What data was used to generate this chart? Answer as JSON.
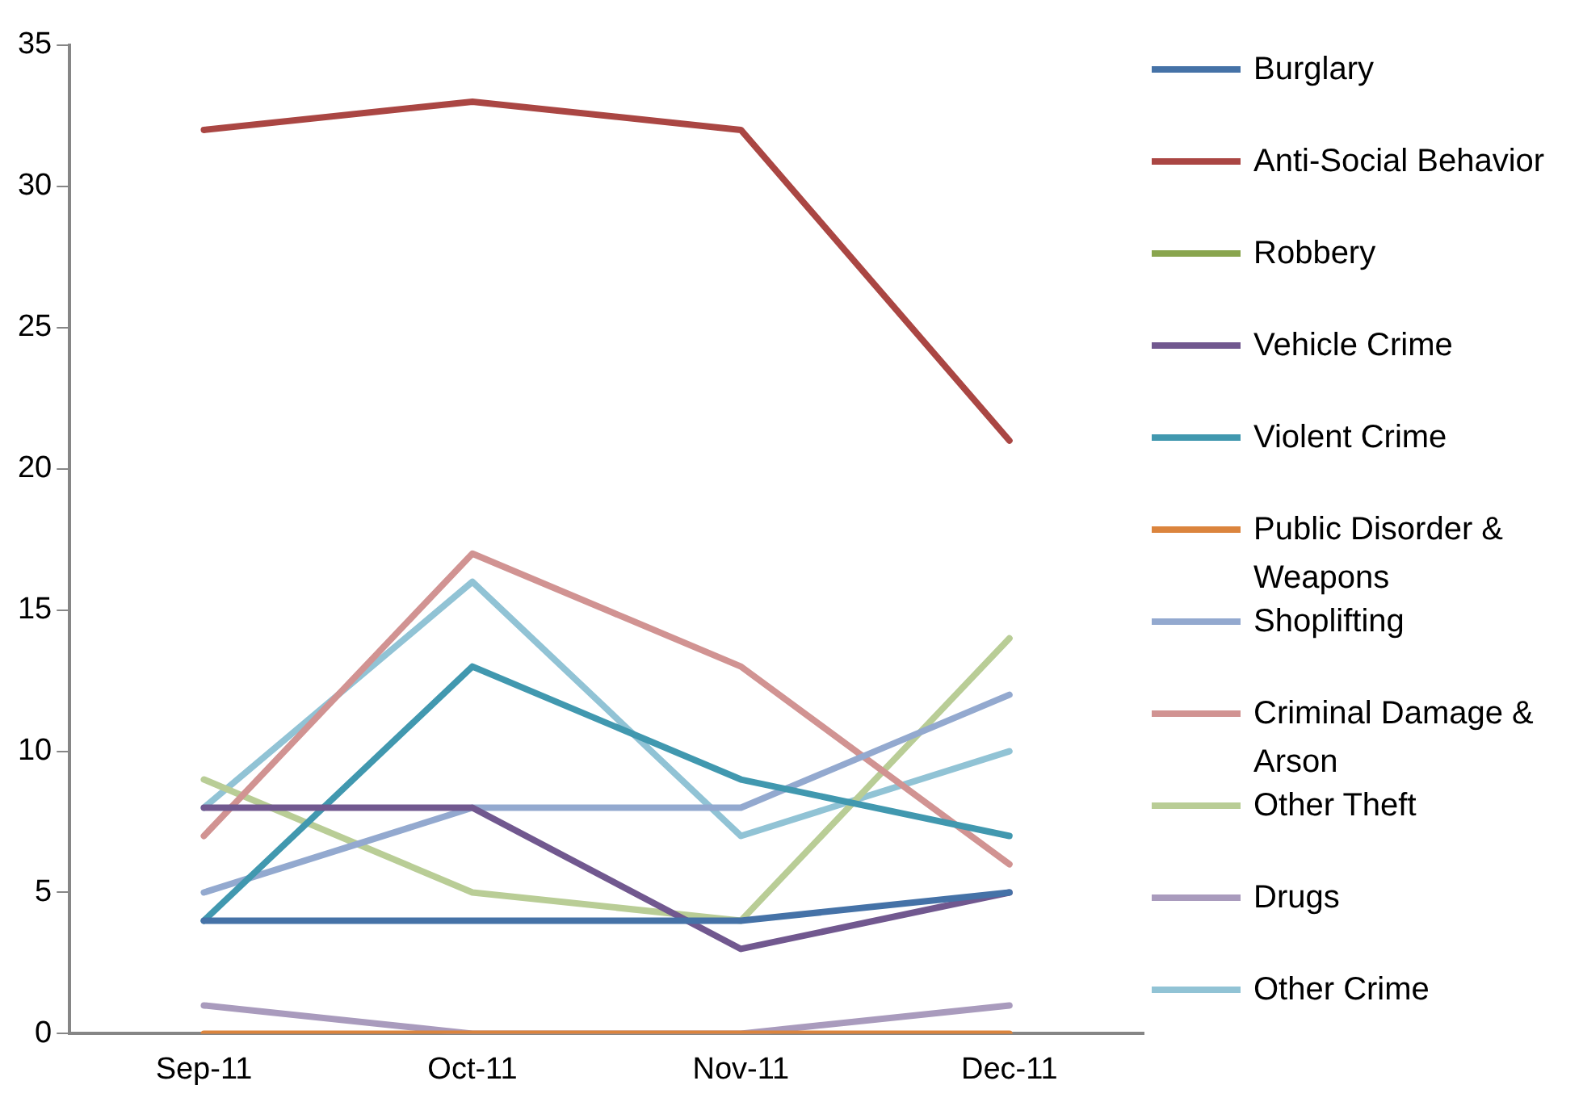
{
  "chart_data": {
    "type": "line",
    "categories": [
      "Sep-11",
      "Oct-11",
      "Nov-11",
      "Dec-11"
    ],
    "ylim": [
      0,
      35
    ],
    "yticks": [
      0,
      5,
      10,
      15,
      20,
      25,
      30,
      35
    ],
    "grid": false,
    "legend": "right",
    "marker": "none",
    "series": [
      {
        "name": "Burglary",
        "color": "#4572a7",
        "values": [
          4,
          4,
          4,
          5
        ]
      },
      {
        "name": "Anti-Social Behavior",
        "color": "#aa4643",
        "values": [
          32,
          33,
          32,
          21
        ]
      },
      {
        "name": "Robbery",
        "color": "#89a54e",
        "values": [
          null,
          null,
          null,
          null
        ]
      },
      {
        "name": "Vehicle Crime",
        "color": "#71588f",
        "values": [
          8,
          8,
          3,
          5
        ]
      },
      {
        "name": "Violent Crime",
        "color": "#4198af",
        "values": [
          4,
          13,
          9,
          7
        ]
      },
      {
        "name": "Public Disorder & Weapons",
        "color": "#db843d",
        "values": [
          0,
          0,
          0,
          0
        ]
      },
      {
        "name": "Shoplifting",
        "color": "#93a9cf",
        "values": [
          5,
          8,
          8,
          12
        ]
      },
      {
        "name": "Criminal Damage & Arson",
        "color": "#d19392",
        "values": [
          7,
          17,
          13,
          6
        ]
      },
      {
        "name": "Other Theft",
        "color": "#b9cd96",
        "values": [
          9,
          5,
          4,
          14
        ]
      },
      {
        "name": "Drugs",
        "color": "#a99bbd",
        "values": [
          1,
          0,
          0,
          1
        ]
      },
      {
        "name": "Other Crime",
        "color": "#91c3d5",
        "values": [
          8,
          16,
          7,
          10
        ]
      }
    ]
  }
}
